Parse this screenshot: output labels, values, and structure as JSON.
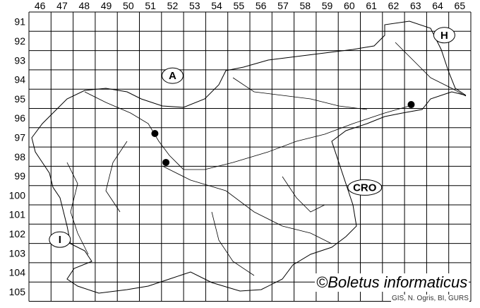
{
  "map": {
    "column_labels": [
      "46",
      "47",
      "48",
      "49",
      "50",
      "51",
      "52",
      "53",
      "54",
      "55",
      "56",
      "57",
      "58",
      "59",
      "60",
      "61",
      "62",
      "63",
      "64",
      "65"
    ],
    "row_labels": [
      "91",
      "92",
      "93",
      "94",
      "95",
      "96",
      "97",
      "98",
      "99",
      "100",
      "101",
      "102",
      "103",
      "104",
      "105"
    ],
    "country_labels": [
      {
        "text": "A",
        "col": 52.5,
        "row": 94.3
      },
      {
        "text": "H",
        "col": 64.8,
        "row": 92.2
      },
      {
        "text": "CRO",
        "col": 61.2,
        "row": 100.1
      },
      {
        "text": "I",
        "col": 47.4,
        "row": 102.8
      }
    ],
    "records": [
      {
        "col": 51.7,
        "row": 97.3
      },
      {
        "col": 52.2,
        "row": 98.8
      },
      {
        "col": 63.3,
        "row": 95.8
      }
    ],
    "line_color": "#000000",
    "dot_color": "#000000"
  },
  "footer": {
    "copyright": "©Boletus informaticus",
    "credit": "GIS, N. Ogris, BI, GURS"
  }
}
